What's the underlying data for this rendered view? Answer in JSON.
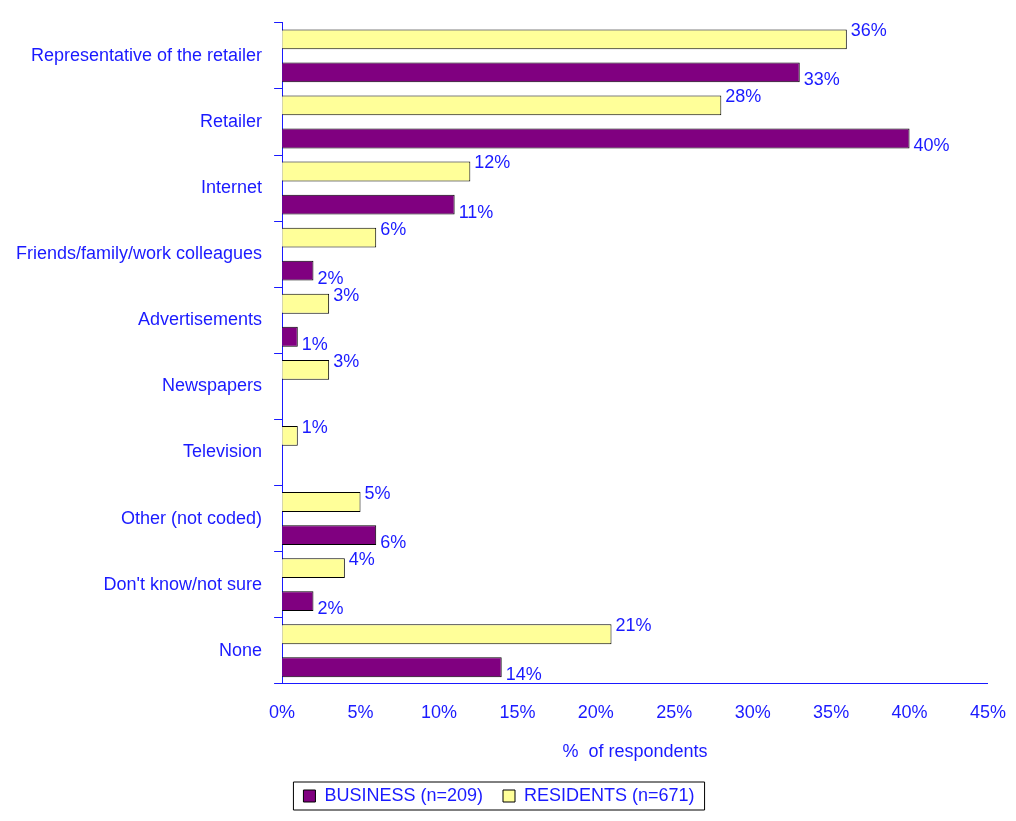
{
  "chart_data": {
    "type": "bar",
    "orientation": "horizontal",
    "xlabel": "%  of respondents",
    "categories": [
      "Representative of the retailer",
      "Retailer",
      "Internet",
      "Friends/family/work colleagues",
      "Advertisements",
      "Newspapers",
      "Television",
      "Other (not coded)",
      "Don't know/not sure",
      "None"
    ],
    "series": [
      {
        "name": "RESIDENTS (n=671)",
        "color": "#ffff99",
        "values": [
          36,
          28,
          12,
          6,
          3,
          3,
          1,
          5,
          4,
          21
        ],
        "value_labels": [
          "36%",
          "28%",
          "12%",
          "6%",
          "3%",
          "3%",
          "1%",
          "5%",
          "4%",
          "21%"
        ]
      },
      {
        "name": "BUSINESS (n=209)",
        "color": "#800080",
        "values": [
          33,
          40,
          11,
          2,
          1,
          null,
          null,
          6,
          2,
          14
        ],
        "value_labels": [
          "33%",
          "40%",
          "11%",
          "2%",
          "1%",
          null,
          null,
          "6%",
          "2%",
          "14%"
        ]
      }
    ],
    "xlim": [
      0,
      45
    ],
    "xticks": [
      {
        "value": 0,
        "label": "0%"
      },
      {
        "value": 5,
        "label": "5%"
      },
      {
        "value": 10,
        "label": "10%"
      },
      {
        "value": 15,
        "label": "15%"
      },
      {
        "value": 20,
        "label": "20%"
      },
      {
        "value": 25,
        "label": "25%"
      },
      {
        "value": 30,
        "label": "30%"
      },
      {
        "value": 35,
        "label": "35%"
      },
      {
        "value": 40,
        "label": "40%"
      },
      {
        "value": 45,
        "label": "45%"
      }
    ],
    "grid": false,
    "legend": "bottom"
  }
}
